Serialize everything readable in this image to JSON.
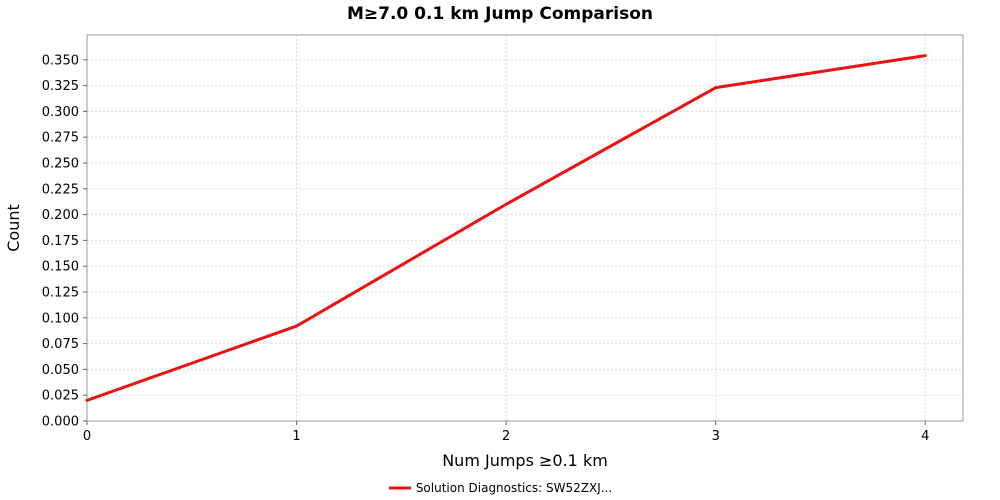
{
  "chart_data": {
    "type": "line",
    "title": "M≥7.0 0.1 km Jump Comparison",
    "xlabel": "Num Jumps ≥0.1 km",
    "ylabel": "Count",
    "x": [
      0,
      1,
      2,
      3,
      4
    ],
    "series": [
      {
        "name": "Solution Diagnostics: SW52ZXJ...",
        "color": "#ee1111",
        "values": [
          0.02,
          0.092,
          0.21,
          0.323,
          0.354
        ]
      }
    ],
    "xlim": [
      0,
      4.18
    ],
    "ylim": [
      0,
      0.374
    ],
    "x_tick_values": [
      0,
      1,
      2,
      3,
      4
    ],
    "x_tick_labels": [
      "0",
      "1",
      "2",
      "3",
      "4"
    ],
    "y_tick_values": [
      0.0,
      0.025,
      0.05,
      0.075,
      0.1,
      0.125,
      0.15,
      0.175,
      0.2,
      0.225,
      0.25,
      0.275,
      0.3,
      0.325,
      0.35
    ],
    "y_tick_labels": [
      "0.000",
      "0.025",
      "0.050",
      "0.075",
      "0.100",
      "0.125",
      "0.150",
      "0.175",
      "0.200",
      "0.225",
      "0.250",
      "0.275",
      "0.300",
      "0.325",
      "0.350"
    ],
    "grid": true,
    "legend_position": "bottom",
    "background_color": "#ffffff"
  }
}
